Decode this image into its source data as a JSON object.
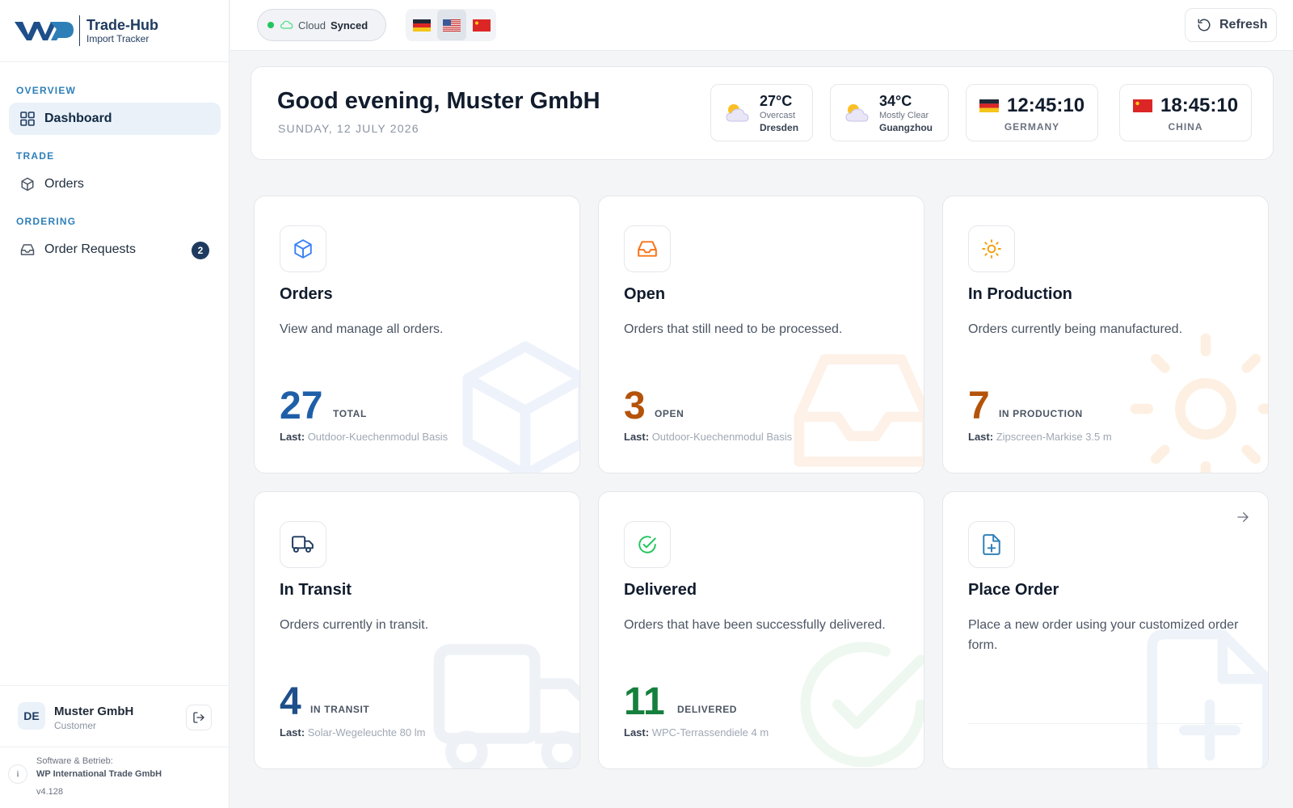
{
  "brand": {
    "name": "Trade-Hub",
    "subtitle": "Import Tracker"
  },
  "sidebar": {
    "sections": [
      {
        "title": "OVERVIEW",
        "items": [
          {
            "label": "Dashboard",
            "icon": "grid-icon",
            "active": true
          }
        ]
      },
      {
        "title": "TRADE",
        "items": [
          {
            "label": "Orders",
            "icon": "box-icon"
          }
        ]
      },
      {
        "title": "ORDERING",
        "items": [
          {
            "label": "Order Requests",
            "icon": "inbox-icon",
            "badge": "2"
          }
        ]
      }
    ],
    "user": {
      "initials": "DE",
      "name": "Muster GmbH",
      "role": "Customer"
    },
    "footer": {
      "line1": "Software & Betrieb:",
      "line2": "WP International Trade GmbH",
      "version": "v4.128"
    }
  },
  "topbar": {
    "sync": {
      "prefix": "Cloud",
      "status": "Synced",
      "color": "#22c55e"
    },
    "languages": [
      {
        "flag": "de-flag-icon"
      },
      {
        "flag": "us-flag-icon",
        "selected": true
      },
      {
        "flag": "cn-flag-icon"
      }
    ],
    "refresh_label": "Refresh"
  },
  "greeting": {
    "title": "Good evening, Muster GmbH",
    "date": "SUNDAY, 12 JULY 2026",
    "weather": [
      {
        "temp": "27°C",
        "condition": "Overcast",
        "city": "Dresden"
      },
      {
        "temp": "34°C",
        "condition": "Mostly Clear",
        "city": "Guangzhou"
      }
    ],
    "clocks": [
      {
        "time": "12:45:10",
        "label": "GERMANY",
        "flag": "de-flag-icon"
      },
      {
        "time": "18:45:10",
        "label": "CHINA",
        "flag": "cn-flag-icon"
      }
    ]
  },
  "cards": {
    "orders": {
      "title": "Orders",
      "desc": "View and manage all orders.",
      "count": "27",
      "unit": "TOTAL",
      "last_label": "Last:",
      "last": "Outdoor-Kuechenmodul Basis",
      "color": "#1f5fa8"
    },
    "open": {
      "title": "Open",
      "desc": "Orders that still need to be processed.",
      "count": "3",
      "unit": "OPEN",
      "last_label": "Last:",
      "last": "Outdoor-Kuechenmodul Basis",
      "color": "#b45309"
    },
    "production": {
      "title": "In Production",
      "desc": "Orders currently being manufactured.",
      "count": "7",
      "unit": "IN PRODUCTION",
      "last_label": "Last:",
      "last": "Zipscreen-Markise 3.5 m",
      "color": "#b45309"
    },
    "transit": {
      "title": "In Transit",
      "desc": "Orders currently in transit.",
      "count": "4",
      "unit": "IN TRANSIT",
      "last_label": "Last:",
      "last": "Solar-Wegeleuchte 80 lm",
      "color": "#1e4f8a"
    },
    "delivered": {
      "title": "Delivered",
      "desc": "Orders that have been successfully delivered.",
      "count": "11",
      "unit": "DELIVERED",
      "last_label": "Last:",
      "last": "WPC-Terrassendiele 4 m",
      "color": "#15803d"
    },
    "place": {
      "title": "Place Order",
      "desc": "Place a new order using your customized order form."
    }
  }
}
